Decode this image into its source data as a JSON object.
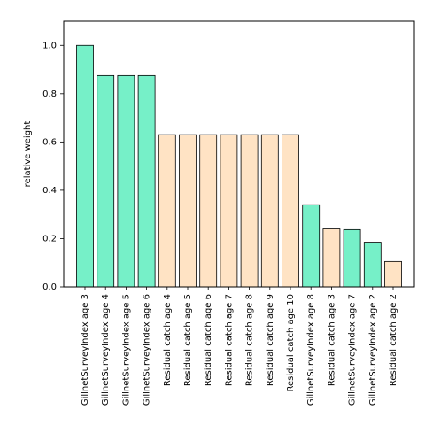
{
  "chart_data": {
    "type": "bar",
    "title": "",
    "xlabel": "",
    "ylabel": "relative weight",
    "ylim": [
      0,
      1.1
    ],
    "yticks": [
      0.0,
      0.2,
      0.4,
      0.6,
      0.8,
      1.0
    ],
    "ytick_labels": [
      "0.0",
      "0.2",
      "0.4",
      "0.6",
      "0.8",
      "1.0"
    ],
    "grid": false,
    "legend": "none",
    "categories": [
      "GillnetSurveyIndex age 3",
      "GillnetSurveyIndex age 4",
      "GillnetSurveyIndex age 5",
      "GillnetSurveyIndex age 6",
      "Residual catch age 4",
      "Residual catch age 5",
      "Residual catch age 6",
      "Residual catch age 7",
      "Residual catch age 8",
      "Residual catch age 9",
      "Residual catch age 10",
      "GillnetSurveyIndex age 8",
      "Residual catch age 3",
      "GillnetSurveyIndex age 7",
      "GillnetSurveyIndex age 2",
      "Residual catch age 2"
    ],
    "values": [
      1.0,
      0.875,
      0.875,
      0.875,
      0.63,
      0.63,
      0.63,
      0.63,
      0.63,
      0.63,
      0.63,
      0.34,
      0.24,
      0.237,
      0.185,
      0.105
    ],
    "bar_groups": [
      "survey",
      "survey",
      "survey",
      "survey",
      "catch",
      "catch",
      "catch",
      "catch",
      "catch",
      "catch",
      "catch",
      "survey",
      "catch",
      "survey",
      "survey",
      "catch"
    ],
    "colors": {
      "survey": "#76f0c8",
      "catch": "#ffe3c4",
      "edge": "#000000"
    }
  }
}
